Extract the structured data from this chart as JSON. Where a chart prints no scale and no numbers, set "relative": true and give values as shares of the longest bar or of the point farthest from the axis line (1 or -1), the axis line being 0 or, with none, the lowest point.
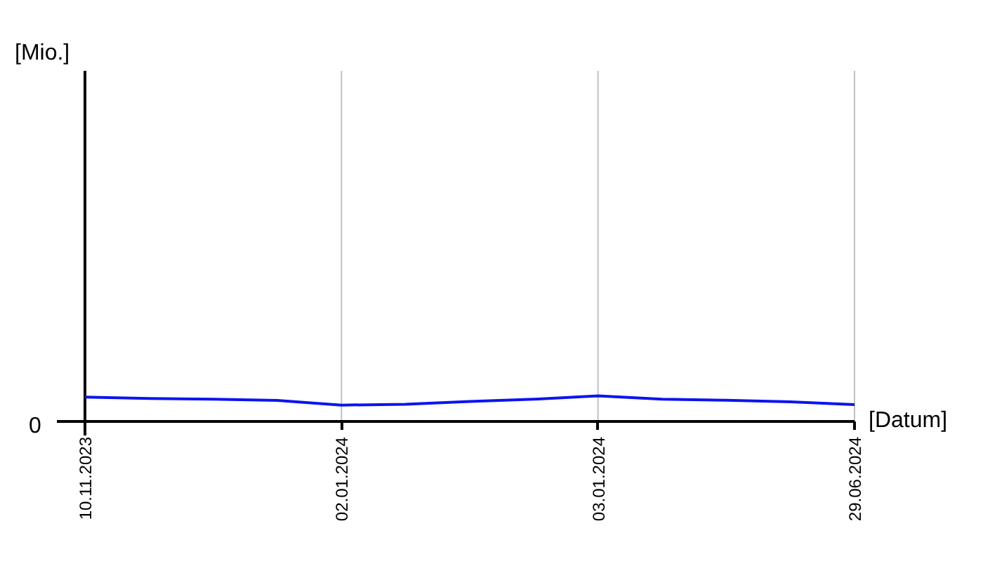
{
  "chart_data": {
    "type": "line",
    "relative": true,
    "xlabel": "[Datum]",
    "categories": [
      "10.11.2023",
      null,
      null,
      null,
      "02.01.2024",
      null,
      null,
      null,
      "03.01.2024",
      null,
      null,
      null,
      "29.06.2024"
    ],
    "series": [
      {
        "color": "#0a14f0",
        "values": [
          0.95,
          0.9,
          0.87,
          0.82,
          0.64,
          0.67,
          0.78,
          0.87,
          1.0,
          0.87,
          0.83,
          0.77,
          0.66
        ]
      }
    ],
    "annotations": [
      "0",
      "[Mio.]"
    ],
    "grid": "x",
    "marker": "none",
    "line_style": "solid"
  }
}
